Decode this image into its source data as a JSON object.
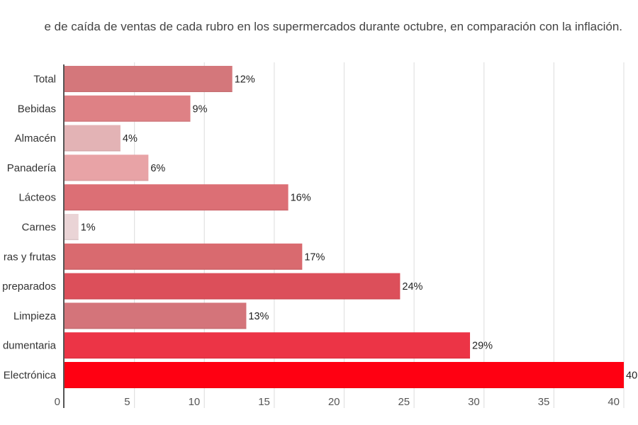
{
  "title": "e de caída de ventas de cada rubro en los supermercados durante octubre, en comparación con la inflación.",
  "chart_data": {
    "type": "bar",
    "orientation": "horizontal",
    "title": "e de caída de ventas de cada rubro en los supermercados durante octubre, en comparación con la inflación.",
    "xlabel": "",
    "ylabel": "",
    "xlim": [
      0,
      40
    ],
    "grid": true,
    "categories": [
      "Total",
      "Bebidas",
      "Almacén",
      "Panadería",
      "Lácteos",
      "Carnes",
      "ras y frutas",
      "preparados",
      "Limpieza",
      "dumentaria",
      "Electrónica"
    ],
    "values": [
      12,
      9,
      4,
      6,
      16,
      1,
      17,
      24,
      13,
      29,
      40
    ],
    "value_labels": [
      "12%",
      "9%",
      "4%",
      "6%",
      "16%",
      "1%",
      "17%",
      "24%",
      "13%",
      "29%",
      "40"
    ],
    "colors": [
      "#d4777b",
      "#de8185",
      "#e3b3b5",
      "#e8a3a6",
      "#dc6f75",
      "#ead4d6",
      "#d96a6f",
      "#dc4f5a",
      "#d4747a",
      "#ec3446",
      "#ff0012"
    ],
    "ticks": [
      0,
      5,
      10,
      15,
      20,
      25,
      30,
      35,
      40
    ],
    "tick_labels": [
      "0",
      "5",
      "10",
      "15",
      "20",
      "25",
      "30",
      "35",
      "40"
    ]
  }
}
